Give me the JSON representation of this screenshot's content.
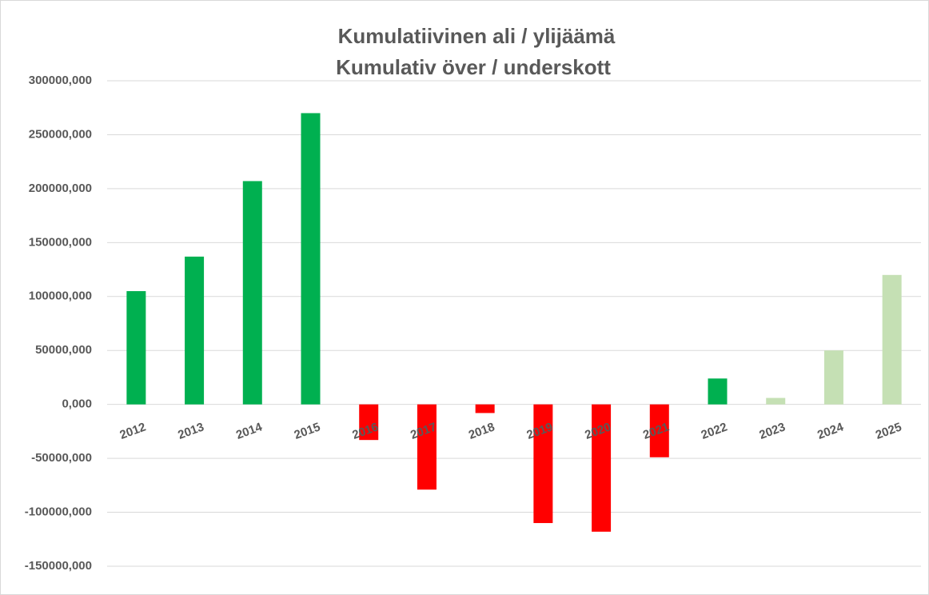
{
  "chart_data": {
    "type": "bar",
    "title": [
      "Kumulatiivinen ali / ylijäämä",
      "Kumulativ över / underskott"
    ],
    "categories": [
      "2012",
      "2013",
      "2014",
      "2015",
      "2016",
      "2017",
      "2018",
      "2019",
      "2020",
      "2021",
      "2022",
      "2023",
      "2024",
      "2025"
    ],
    "values": [
      105000,
      137000,
      207000,
      270000,
      -33000,
      -79000,
      -8000,
      -110000,
      -118000,
      -49000,
      24000,
      6000,
      50000,
      120000
    ],
    "colors": [
      "#00b050",
      "#00b050",
      "#00b050",
      "#00b050",
      "#ff0000",
      "#ff0000",
      "#ff0000",
      "#ff0000",
      "#ff0000",
      "#ff0000",
      "#00b050",
      "#c5e0b4",
      "#c5e0b4",
      "#c5e0b4"
    ],
    "ylim": [
      -150000,
      300000
    ],
    "yticks": [
      {
        "value": -150000,
        "label": "-150000,000"
      },
      {
        "value": -100000,
        "label": "-100000,000"
      },
      {
        "value": -50000,
        "label": "-50000,000"
      },
      {
        "value": 0,
        "label": "0,000"
      },
      {
        "value": 50000,
        "label": "50000,000"
      },
      {
        "value": 100000,
        "label": "100000,000"
      },
      {
        "value": 150000,
        "label": "150000,000"
      },
      {
        "value": 200000,
        "label": "200000,000"
      },
      {
        "value": 250000,
        "label": "250000,000"
      },
      {
        "value": 300000,
        "label": "300000,000"
      }
    ],
    "grid": true
  }
}
